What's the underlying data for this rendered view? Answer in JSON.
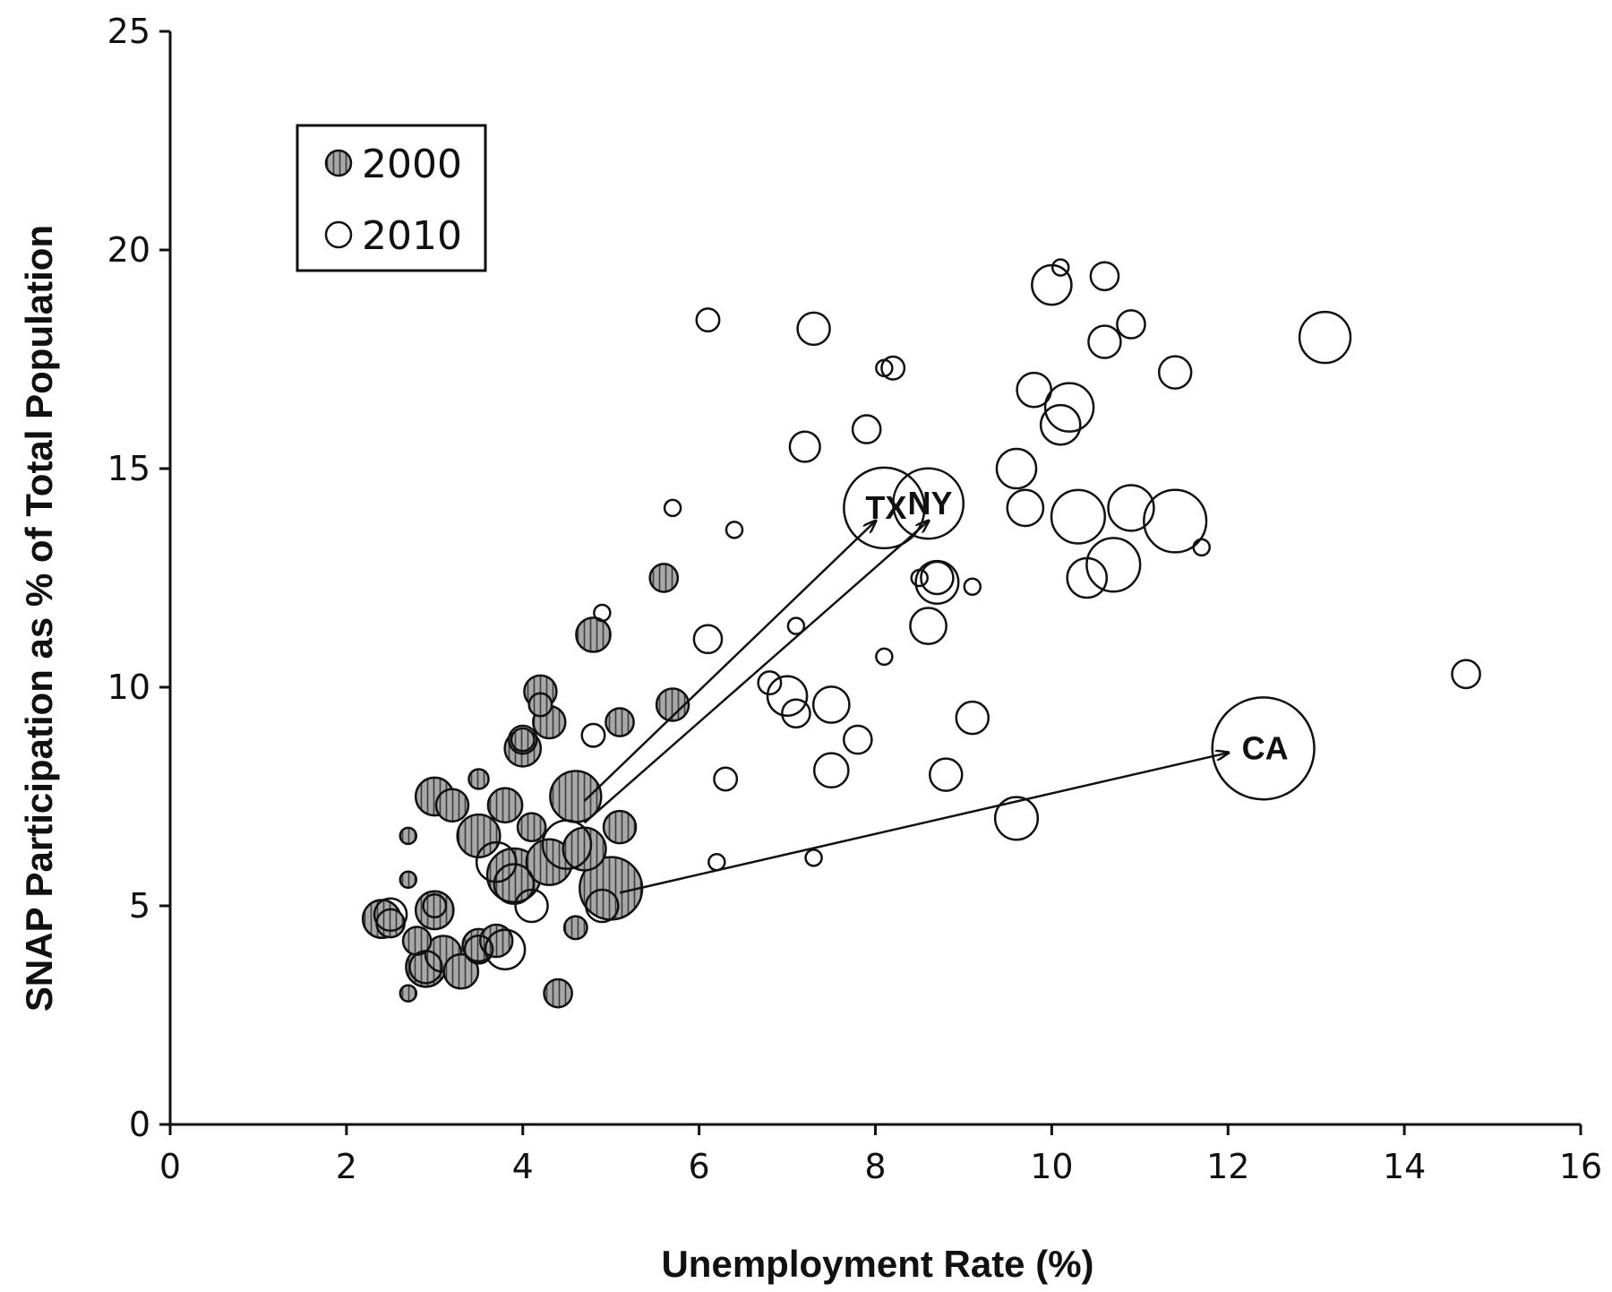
{
  "chart_data": {
    "type": "scatter",
    "xlabel": "Unemployment Rate (%)",
    "ylabel": "SNAP Participation as % of Total Population",
    "xlim": [
      0,
      16
    ],
    "ylim": [
      0,
      25
    ],
    "xticks": [
      "0",
      "2",
      "4",
      "6",
      "8",
      "10",
      "12",
      "14",
      "16"
    ],
    "yticks": [
      "0",
      "5",
      "10",
      "15",
      "20",
      "25"
    ],
    "grid": false,
    "legend_position": "top-left",
    "series": [
      {
        "name": "2000",
        "style": "hatched-gray",
        "points": [
          {
            "x": 2.4,
            "y": 4.7,
            "s": 5.5
          },
          {
            "x": 2.5,
            "y": 4.6,
            "s": 3
          },
          {
            "x": 2.7,
            "y": 3.0,
            "s": 1
          },
          {
            "x": 2.7,
            "y": 5.6,
            "s": 1
          },
          {
            "x": 2.7,
            "y": 6.6,
            "s": 1
          },
          {
            "x": 2.8,
            "y": 4.2,
            "s": 3
          },
          {
            "x": 2.9,
            "y": 3.6,
            "s": 6
          },
          {
            "x": 3.0,
            "y": 7.5,
            "s": 5.5
          },
          {
            "x": 3.0,
            "y": 4.9,
            "s": 5.5
          },
          {
            "x": 3.1,
            "y": 3.9,
            "s": 5
          },
          {
            "x": 3.2,
            "y": 7.3,
            "s": 4
          },
          {
            "x": 3.3,
            "y": 3.5,
            "s": 4.5
          },
          {
            "x": 3.5,
            "y": 7.9,
            "s": 1.5
          },
          {
            "x": 3.5,
            "y": 6.6,
            "s": 7
          },
          {
            "x": 3.5,
            "y": 4.1,
            "s": 4
          },
          {
            "x": 3.7,
            "y": 4.2,
            "s": 4
          },
          {
            "x": 3.8,
            "y": 7.3,
            "s": 4.5
          },
          {
            "x": 3.9,
            "y": 5.7,
            "s": 11
          },
          {
            "x": 4.0,
            "y": 8.6,
            "s": 5
          },
          {
            "x": 4.0,
            "y": 8.8,
            "s": 2
          },
          {
            "x": 4.1,
            "y": 6.8,
            "s": 3
          },
          {
            "x": 4.2,
            "y": 9.9,
            "s": 4
          },
          {
            "x": 4.2,
            "y": 9.6,
            "s": 2
          },
          {
            "x": 4.3,
            "y": 9.2,
            "s": 4
          },
          {
            "x": 4.3,
            "y": 6.0,
            "s": 8
          },
          {
            "x": 4.4,
            "y": 3.0,
            "s": 3
          },
          {
            "x": 4.6,
            "y": 7.5,
            "s": 10
          },
          {
            "x": 4.6,
            "y": 4.5,
            "s": 2
          },
          {
            "x": 4.7,
            "y": 6.3,
            "s": 7
          },
          {
            "x": 4.8,
            "y": 11.2,
            "s": 4.5
          },
          {
            "x": 5.0,
            "y": 5.4,
            "s": 15
          },
          {
            "x": 5.1,
            "y": 9.2,
            "s": 3
          },
          {
            "x": 5.1,
            "y": 6.8,
            "s": 4
          },
          {
            "x": 5.6,
            "y": 12.5,
            "s": 3
          },
          {
            "x": 5.7,
            "y": 9.6,
            "s": 4
          }
        ]
      },
      {
        "name": "2010",
        "style": "open",
        "points": [
          {
            "x": 2.5,
            "y": 4.8,
            "s": 4
          },
          {
            "x": 2.9,
            "y": 3.6,
            "s": 4
          },
          {
            "x": 3.0,
            "y": 5.0,
            "s": 2
          },
          {
            "x": 3.5,
            "y": 4.0,
            "s": 3
          },
          {
            "x": 3.7,
            "y": 6.0,
            "s": 6
          },
          {
            "x": 3.8,
            "y": 4.0,
            "s": 6
          },
          {
            "x": 3.9,
            "y": 5.5,
            "s": 6
          },
          {
            "x": 4.0,
            "y": 8.8,
            "s": 3
          },
          {
            "x": 4.1,
            "y": 5.0,
            "s": 4
          },
          {
            "x": 4.5,
            "y": 6.4,
            "s": 9
          },
          {
            "x": 4.8,
            "y": 8.9,
            "s": 2
          },
          {
            "x": 4.9,
            "y": 11.7,
            "s": 1
          },
          {
            "x": 4.9,
            "y": 5.0,
            "s": 4
          },
          {
            "x": 5.7,
            "y": 14.1,
            "s": 1
          },
          {
            "x": 6.1,
            "y": 18.4,
            "s": 2
          },
          {
            "x": 6.1,
            "y": 11.1,
            "s": 3
          },
          {
            "x": 6.2,
            "y": 6.0,
            "s": 1
          },
          {
            "x": 6.3,
            "y": 7.9,
            "s": 2
          },
          {
            "x": 6.4,
            "y": 13.6,
            "s": 1
          },
          {
            "x": 6.8,
            "y": 10.1,
            "s": 2
          },
          {
            "x": 7.0,
            "y": 9.8,
            "s": 6
          },
          {
            "x": 7.1,
            "y": 11.4,
            "s": 1
          },
          {
            "x": 7.1,
            "y": 9.4,
            "s": 3
          },
          {
            "x": 7.2,
            "y": 15.5,
            "s": 3.5
          },
          {
            "x": 7.3,
            "y": 6.1,
            "s": 1
          },
          {
            "x": 7.3,
            "y": 18.2,
            "s": 4
          },
          {
            "x": 7.5,
            "y": 9.6,
            "s": 5
          },
          {
            "x": 7.5,
            "y": 8.1,
            "s": 4.5
          },
          {
            "x": 7.8,
            "y": 8.8,
            "s": 3
          },
          {
            "x": 7.9,
            "y": 15.9,
            "s": 3
          },
          {
            "x": 8.1,
            "y": 10.7,
            "s": 1
          },
          {
            "x": 8.1,
            "y": 17.3,
            "s": 1
          },
          {
            "x": 8.2,
            "y": 17.3,
            "s": 2
          },
          {
            "x": 8.1,
            "y": 14.1,
            "s": 25,
            "label": "TX"
          },
          {
            "x": 8.6,
            "y": 14.2,
            "s": 19,
            "label": "NY"
          },
          {
            "x": 8.5,
            "y": 12.5,
            "s": 1
          },
          {
            "x": 8.6,
            "y": 11.4,
            "s": 5
          },
          {
            "x": 8.7,
            "y": 12.4,
            "s": 7
          },
          {
            "x": 8.7,
            "y": 12.5,
            "s": 4
          },
          {
            "x": 8.8,
            "y": 8.0,
            "s": 4
          },
          {
            "x": 9.1,
            "y": 12.3,
            "s": 1
          },
          {
            "x": 9.1,
            "y": 9.3,
            "s": 4
          },
          {
            "x": 9.6,
            "y": 15.0,
            "s": 6
          },
          {
            "x": 9.6,
            "y": 7.0,
            "s": 7
          },
          {
            "x": 9.7,
            "y": 14.1,
            "s": 5
          },
          {
            "x": 9.8,
            "y": 16.8,
            "s": 4.5
          },
          {
            "x": 10.0,
            "y": 19.2,
            "s": 6
          },
          {
            "x": 10.1,
            "y": 19.6,
            "s": 1
          },
          {
            "x": 10.1,
            "y": 16.0,
            "s": 6
          },
          {
            "x": 10.2,
            "y": 16.4,
            "s": 9
          },
          {
            "x": 10.3,
            "y": 13.9,
            "s": 11
          },
          {
            "x": 10.4,
            "y": 12.5,
            "s": 6
          },
          {
            "x": 10.6,
            "y": 19.4,
            "s": 3
          },
          {
            "x": 10.6,
            "y": 17.9,
            "s": 4
          },
          {
            "x": 10.7,
            "y": 12.8,
            "s": 11
          },
          {
            "x": 10.9,
            "y": 14.1,
            "s": 8
          },
          {
            "x": 10.9,
            "y": 18.3,
            "s": 3
          },
          {
            "x": 11.4,
            "y": 13.8,
            "s": 15
          },
          {
            "x": 11.4,
            "y": 17.2,
            "s": 4
          },
          {
            "x": 11.7,
            "y": 13.2,
            "s": 1
          },
          {
            "x": 12.4,
            "y": 8.6,
            "s": 40,
            "label": "CA"
          },
          {
            "x": 13.1,
            "y": 18.0,
            "s": 10
          },
          {
            "x": 14.7,
            "y": 10.3,
            "s": 3
          }
        ]
      }
    ],
    "arrows": [
      {
        "from": [
          4.7,
          7.4
        ],
        "to": [
          8.0,
          13.8
        ]
      },
      {
        "from": [
          4.7,
          6.9
        ],
        "to": [
          8.6,
          13.8
        ]
      },
      {
        "from": [
          5.1,
          5.3
        ],
        "to": [
          12.0,
          8.5
        ]
      }
    ]
  },
  "colors": {
    "fill_2000": "#a8a8a8",
    "hatch_2000": "#3a3a3a",
    "stroke": "#111111",
    "background": "#ffffff"
  }
}
